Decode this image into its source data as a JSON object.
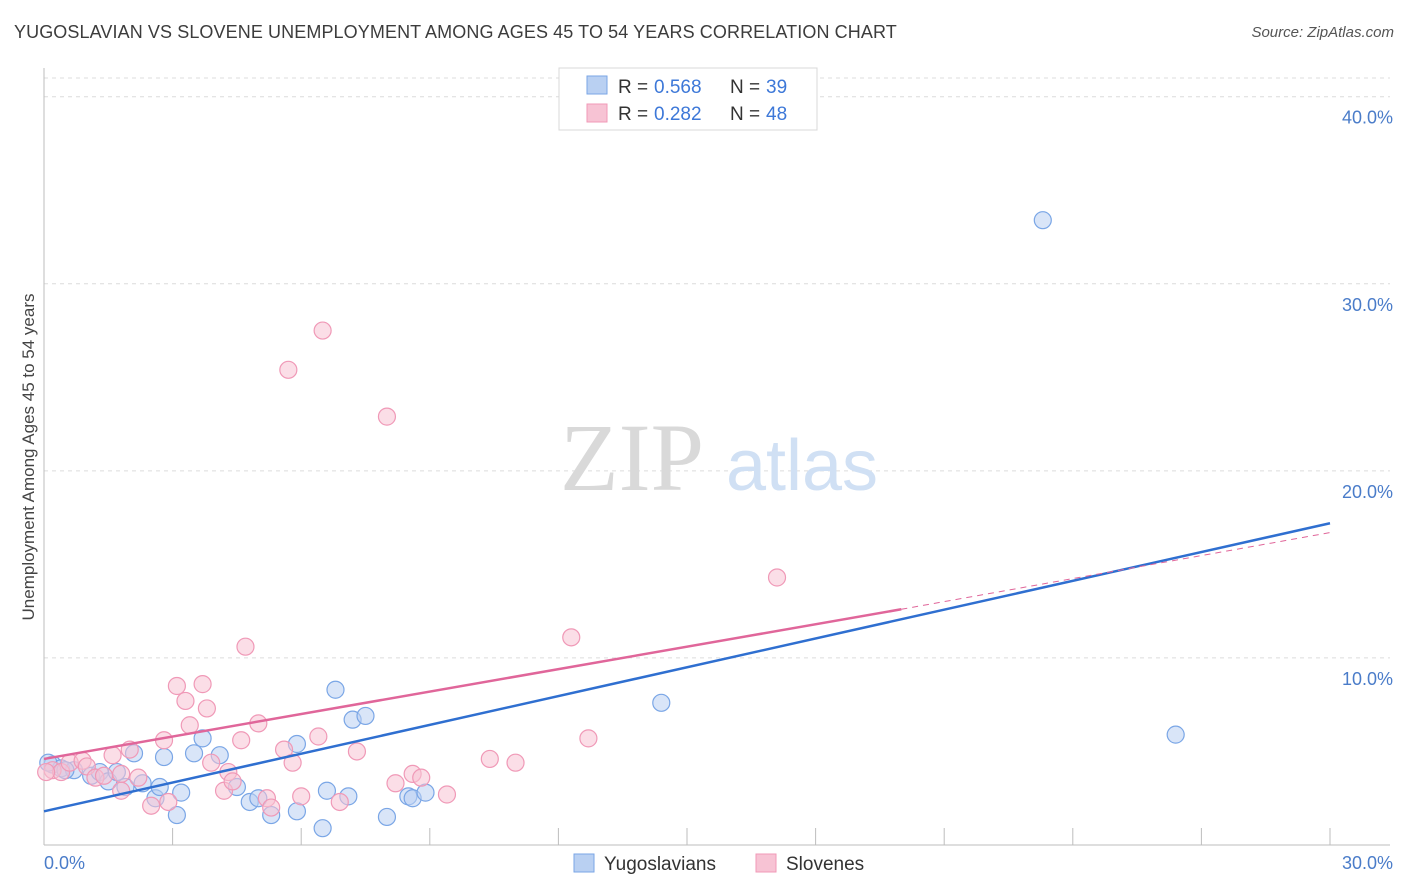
{
  "title": "YUGOSLAVIAN VS SLOVENE UNEMPLOYMENT AMONG AGES 45 TO 54 YEARS CORRELATION CHART",
  "source": "Source: ZipAtlas.com",
  "watermark": {
    "zip": "ZIP",
    "atlas": "atlas"
  },
  "chart_data": {
    "type": "scatter",
    "title": "YUGOSLAVIAN VS SLOVENE UNEMPLOYMENT AMONG AGES 45 TO 54 YEARS CORRELATION CHART",
    "xlabel": "",
    "ylabel": "Unemployment Among Ages 45 to 54 years",
    "xlim": [
      0,
      30
    ],
    "ylim": [
      0,
      41
    ],
    "x_tick_labels": {
      "left": "0.0%",
      "right": "30.0%"
    },
    "y_ticks": [
      10,
      20,
      30,
      40
    ],
    "y_tick_labels": [
      "10.0%",
      "20.0%",
      "30.0%",
      "40.0%"
    ],
    "legend_position": "top-center",
    "legend": {
      "r_label": "R =",
      "n_label": "N =",
      "entries": [
        {
          "name": "Yugoslavians",
          "r": "0.568",
          "n": "39"
        },
        {
          "name": "Slovenes",
          "r": "0.282",
          "n": "48"
        }
      ]
    },
    "series": [
      {
        "name": "Yugoslavians",
        "color": "#7aa6e6",
        "fill": "#b9d0f2",
        "line_color": "#2f6fd0",
        "trend": {
          "x0": 0,
          "y0": 1.8,
          "x1": 30,
          "y1": 17.2
        },
        "points": [
          {
            "x": 0.2,
            "y": 4.3
          },
          {
            "x": 0.4,
            "y": 4.1
          },
          {
            "x": 0.7,
            "y": 4.0
          },
          {
            "x": 1.1,
            "y": 3.7
          },
          {
            "x": 1.3,
            "y": 3.9
          },
          {
            "x": 1.5,
            "y": 3.4
          },
          {
            "x": 1.7,
            "y": 3.9
          },
          {
            "x": 1.9,
            "y": 3.1
          },
          {
            "x": 2.1,
            "y": 4.9
          },
          {
            "x": 2.3,
            "y": 3.3
          },
          {
            "x": 2.6,
            "y": 2.5
          },
          {
            "x": 2.7,
            "y": 3.1
          },
          {
            "x": 2.8,
            "y": 4.7
          },
          {
            "x": 3.1,
            "y": 1.6
          },
          {
            "x": 3.2,
            "y": 2.8
          },
          {
            "x": 3.5,
            "y": 4.9
          },
          {
            "x": 3.7,
            "y": 5.7
          },
          {
            "x": 4.1,
            "y": 4.8
          },
          {
            "x": 4.5,
            "y": 3.1
          },
          {
            "x": 4.8,
            "y": 2.3
          },
          {
            "x": 5.0,
            "y": 2.5
          },
          {
            "x": 5.3,
            "y": 1.6
          },
          {
            "x": 5.9,
            "y": 5.4
          },
          {
            "x": 5.9,
            "y": 1.8
          },
          {
            "x": 6.6,
            "y": 2.9
          },
          {
            "x": 6.8,
            "y": 8.3
          },
          {
            "x": 7.1,
            "y": 2.6
          },
          {
            "x": 7.2,
            "y": 6.7
          },
          {
            "x": 7.5,
            "y": 6.9
          },
          {
            "x": 8.0,
            "y": 1.5
          },
          {
            "x": 8.5,
            "y": 2.6
          },
          {
            "x": 8.6,
            "y": 2.5
          },
          {
            "x": 8.9,
            "y": 2.8
          },
          {
            "x": 6.5,
            "y": 0.9
          },
          {
            "x": 14.4,
            "y": 7.6
          },
          {
            "x": 23.3,
            "y": 33.4
          },
          {
            "x": 26.4,
            "y": 5.9
          },
          {
            "x": 0.1,
            "y": 4.4
          },
          {
            "x": 0.5,
            "y": 4.0
          }
        ]
      },
      {
        "name": "Slovenes",
        "color": "#f099b7",
        "fill": "#f7c3d4",
        "line_color": "#e0669a",
        "trend": {
          "x0": 0,
          "y0": 4.6,
          "x1": 20,
          "y1": 12.6
        },
        "trend_ext": {
          "x0": 20,
          "y0": 12.6,
          "x1": 30,
          "y1": 16.7
        },
        "points": [
          {
            "x": 0.2,
            "y": 4.0
          },
          {
            "x": 0.4,
            "y": 3.9
          },
          {
            "x": 0.6,
            "y": 4.4
          },
          {
            "x": 0.9,
            "y": 4.5
          },
          {
            "x": 1.0,
            "y": 4.2
          },
          {
            "x": 1.2,
            "y": 3.6
          },
          {
            "x": 1.4,
            "y": 3.7
          },
          {
            "x": 1.6,
            "y": 4.8
          },
          {
            "x": 1.8,
            "y": 3.8
          },
          {
            "x": 1.8,
            "y": 2.9
          },
          {
            "x": 2.0,
            "y": 5.1
          },
          {
            "x": 2.2,
            "y": 3.6
          },
          {
            "x": 2.5,
            "y": 2.1
          },
          {
            "x": 2.8,
            "y": 5.6
          },
          {
            "x": 2.9,
            "y": 2.3
          },
          {
            "x": 3.1,
            "y": 8.5
          },
          {
            "x": 3.3,
            "y": 7.7
          },
          {
            "x": 3.4,
            "y": 6.4
          },
          {
            "x": 3.7,
            "y": 8.6
          },
          {
            "x": 3.8,
            "y": 7.3
          },
          {
            "x": 3.9,
            "y": 4.4
          },
          {
            "x": 4.2,
            "y": 2.9
          },
          {
            "x": 4.3,
            "y": 3.9
          },
          {
            "x": 4.4,
            "y": 3.4
          },
          {
            "x": 4.6,
            "y": 5.6
          },
          {
            "x": 4.7,
            "y": 10.6
          },
          {
            "x": 5.0,
            "y": 6.5
          },
          {
            "x": 5.2,
            "y": 2.5
          },
          {
            "x": 5.3,
            "y": 2.0
          },
          {
            "x": 5.6,
            "y": 5.1
          },
          {
            "x": 5.8,
            "y": 4.4
          },
          {
            "x": 6.0,
            "y": 2.6
          },
          {
            "x": 6.4,
            "y": 5.8
          },
          {
            "x": 6.9,
            "y": 2.3
          },
          {
            "x": 7.3,
            "y": 5.0
          },
          {
            "x": 8.2,
            "y": 3.3
          },
          {
            "x": 8.6,
            "y": 3.8
          },
          {
            "x": 8.8,
            "y": 3.6
          },
          {
            "x": 9.4,
            "y": 2.7
          },
          {
            "x": 10.4,
            "y": 4.6
          },
          {
            "x": 11.0,
            "y": 4.4
          },
          {
            "x": 12.3,
            "y": 11.1
          },
          {
            "x": 12.7,
            "y": 5.7
          },
          {
            "x": 17.1,
            "y": 14.3
          },
          {
            "x": 5.7,
            "y": 25.4
          },
          {
            "x": 6.5,
            "y": 27.5
          },
          {
            "x": 8.0,
            "y": 22.9
          },
          {
            "x": 0.05,
            "y": 3.9
          }
        ]
      }
    ]
  }
}
